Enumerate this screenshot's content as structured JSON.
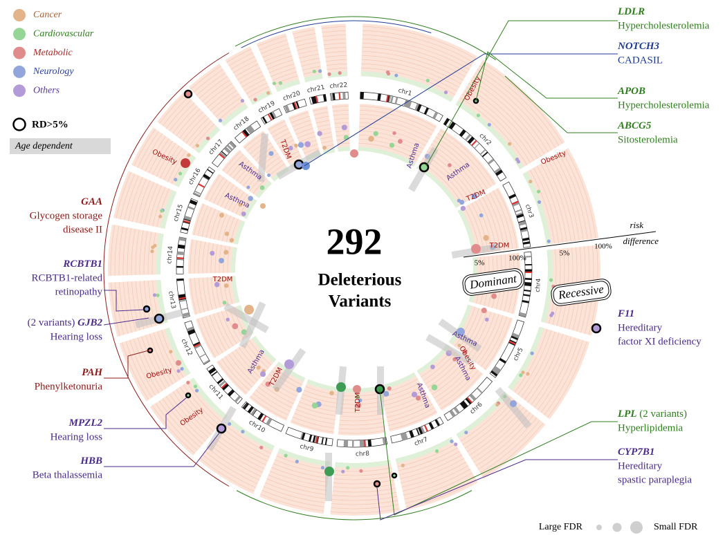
{
  "legend": {
    "categories": [
      {
        "name": "Cancer",
        "color": "#e3b48a",
        "text_color": "#a0643a"
      },
      {
        "name": "Cardiovascular",
        "color": "#95d595",
        "text_color": "#2f7d1f"
      },
      {
        "name": "Metabolic",
        "color": "#e08c8c",
        "text_color": "#a52a2a"
      },
      {
        "name": "Neurology",
        "color": "#93a6dc",
        "text_color": "#2b3f94"
      },
      {
        "name": "Others",
        "color": "#b39bd8",
        "text_color": "#5b3a9a"
      }
    ],
    "rd": "RD>5%",
    "age": "Age dependent"
  },
  "center": {
    "number": "292",
    "lines": [
      "Deleterious",
      "Variants"
    ]
  },
  "chromosomes": [
    "chr1",
    "chr2",
    "chr3",
    "chr4",
    "chr5",
    "chr6",
    "chr7",
    "chr8",
    "chr9",
    "chr10",
    "chr11",
    "chr12",
    "chr13",
    "chr14",
    "chr15",
    "chr16",
    "chr17",
    "chr18",
    "chr19",
    "chr20",
    "chr21",
    "chr22"
  ],
  "axis": {
    "top": "risk",
    "bottom": "difference",
    "dominant_ticks": [
      "5%",
      "100%"
    ],
    "recessive_ticks": [
      "5%",
      "100%"
    ]
  },
  "rings": [
    "Dominant",
    "Recessive"
  ],
  "track_labels": [
    "Obesity",
    "Obesity",
    "Obesity",
    "Obesity",
    "Obesity",
    "Asthma",
    "Asthma",
    "T2DM",
    "T2DM",
    "Asthma",
    "Obesity",
    "Asthma",
    "Asthma",
    "T2DM",
    "T2DM",
    "Asthma",
    "T2DM",
    "Asthma",
    "Asthma",
    "T2DM"
  ],
  "annotations": [
    {
      "gene_line": [
        {
          "text": "LDLR",
          "style": "gene"
        }
      ],
      "disease": [
        "Hypercholesterolemia"
      ],
      "color": "#2f7d1f"
    },
    {
      "gene_line": [
        {
          "text": "NOTCH3",
          "style": "gene"
        }
      ],
      "disease": [
        "CADASIL"
      ],
      "color": "#1f3a93"
    },
    {
      "gene_line": [
        {
          "text": "APOB",
          "style": "gene"
        }
      ],
      "disease": [
        "Hypercholesterolemia"
      ],
      "color": "#2f7d1f"
    },
    {
      "gene_line": [
        {
          "text": "ABCG5",
          "style": "gene"
        }
      ],
      "disease": [
        "Sitosterolemia"
      ],
      "color": "#2f7d1f"
    },
    {
      "gene_line": [
        {
          "text": "F11",
          "style": "gene"
        }
      ],
      "disease": [
        "Hereditary",
        "factor XI deficiency"
      ],
      "color": "#4b2a8a"
    },
    {
      "gene_line": [
        {
          "text": "LPL",
          "style": "gene"
        },
        {
          "text": " (2 variants)",
          "style": "plain"
        }
      ],
      "disease": [
        "Hyperlipidemia"
      ],
      "color": "#2f7d1f"
    },
    {
      "gene_line": [
        {
          "text": "CYP7B1",
          "style": "gene"
        }
      ],
      "disease": [
        "Hereditary",
        "spastic paraplegia"
      ],
      "color": "#4b2a8a"
    },
    {
      "gene_line": [
        {
          "text": "GAA",
          "style": "gene"
        }
      ],
      "disease": [
        "Glycogen storage",
        "disease II"
      ],
      "color": "#8b1a1a"
    },
    {
      "gene_line": [
        {
          "text": "RCBTB1",
          "style": "gene"
        }
      ],
      "disease": [
        "RCBTB1-related",
        "retinopathy"
      ],
      "color": "#4b2a8a"
    },
    {
      "gene_line": [
        {
          "text": "(2 variants) ",
          "style": "plain"
        },
        {
          "text": "GJB2",
          "style": "gene"
        }
      ],
      "disease": [
        "Hearing loss"
      ],
      "color": "#4b2a8a"
    },
    {
      "gene_line": [
        {
          "text": "PAH",
          "style": "gene"
        }
      ],
      "disease": [
        "Phenylketonuria"
      ],
      "color": "#8b1a1a"
    },
    {
      "gene_line": [
        {
          "text": "MPZL2",
          "style": "gene"
        }
      ],
      "disease": [
        "Hearing loss"
      ],
      "color": "#4b2a8a"
    },
    {
      "gene_line": [
        {
          "text": "HBB",
          "style": "gene"
        }
      ],
      "disease": [
        "Beta thalassemia"
      ],
      "color": "#4b2a8a"
    }
  ],
  "size_legend": {
    "left": "Large FDR",
    "right": "Small FDR"
  }
}
